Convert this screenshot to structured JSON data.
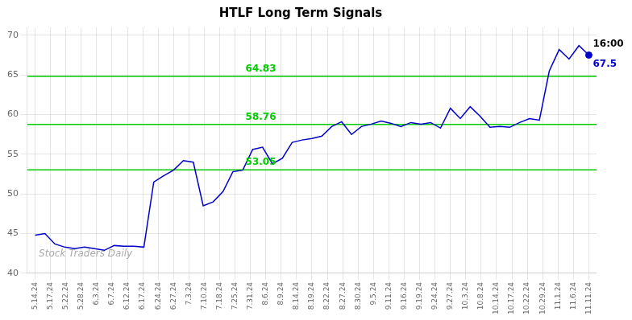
{
  "chart_data": {
    "type": "line",
    "title": "HTLF Long Term Signals",
    "watermark": "Stock Traders Daily",
    "color": "#0000cc",
    "grid": true,
    "x": [
      0,
      0.642857,
      1.285714,
      1.928571,
      2.571429,
      3.214286,
      3.857143,
      4.5,
      5.142857,
      5.785714,
      6.428571,
      7.071429,
      7.714286,
      8.357143,
      9,
      9.642857,
      10.285714,
      10.928571,
      11.571429,
      12.214286,
      12.857143,
      13.5,
      14.142857,
      14.785714,
      15.428571,
      16.071429,
      16.714286,
      17.357143,
      18,
      18.642857,
      19.285714,
      19.928571,
      20.571429,
      21.214286,
      21.857143,
      22.5,
      23.142857,
      23.785714,
      24.428571,
      25.071429,
      25.714286,
      26.357143,
      27,
      27.642857,
      28.285714,
      28.928571,
      29.571429,
      30.214286,
      30.857143,
      31.5,
      32.142857,
      32.785714,
      33.428571,
      34.071429,
      34.714286,
      35.357143,
      36
    ],
    "values": [
      44.8,
      45.0,
      43.7,
      43.3,
      43.1,
      43.3,
      43.1,
      42.9,
      43.5,
      43.4,
      43.4,
      43.3,
      51.5,
      52.3,
      53.0,
      54.2,
      54.0,
      48.5,
      49.0,
      50.3,
      52.8,
      53.0,
      55.6,
      55.9,
      53.8,
      54.5,
      56.5,
      56.8,
      57.0,
      57.3,
      58.5,
      59.1,
      57.5,
      58.5,
      58.8,
      59.2,
      58.9,
      58.5,
      59.0,
      58.8,
      59.0,
      58.3,
      60.8,
      59.5,
      61.0,
      59.8,
      58.4,
      58.5,
      58.4,
      59.0,
      59.5,
      59.3,
      65.5,
      68.2,
      67.0,
      68.7,
      67.5
    ],
    "xlim": [
      -0.5,
      36.5
    ],
    "xticks": [
      {
        "value": 0,
        "label": "5.14.24"
      },
      {
        "value": 1,
        "label": "5.17.24"
      },
      {
        "value": 2,
        "label": "5.22.24"
      },
      {
        "value": 3,
        "label": "5.28.24"
      },
      {
        "value": 4,
        "label": "6.3.24"
      },
      {
        "value": 5,
        "label": "6.7.24"
      },
      {
        "value": 6,
        "label": "6.12.24"
      },
      {
        "value": 7,
        "label": "6.17.24"
      },
      {
        "value": 8,
        "label": "6.24.24"
      },
      {
        "value": 9,
        "label": "6.27.24"
      },
      {
        "value": 10,
        "label": "7.3.24"
      },
      {
        "value": 11,
        "label": "7.10.24"
      },
      {
        "value": 12,
        "label": "7.18.24"
      },
      {
        "value": 13,
        "label": "7.25.24"
      },
      {
        "value": 14,
        "label": "7.31.24"
      },
      {
        "value": 15,
        "label": "8.6.24"
      },
      {
        "value": 16,
        "label": "8.9.24"
      },
      {
        "value": 17,
        "label": "8.14.24"
      },
      {
        "value": 18,
        "label": "8.19.24"
      },
      {
        "value": 19,
        "label": "8.22.24"
      },
      {
        "value": 20,
        "label": "8.27.24"
      },
      {
        "value": 21,
        "label": "8.30.24"
      },
      {
        "value": 22,
        "label": "9.5.24"
      },
      {
        "value": 23,
        "label": "9.11.24"
      },
      {
        "value": 24,
        "label": "9.16.24"
      },
      {
        "value": 25,
        "label": "9.19.24"
      },
      {
        "value": 26,
        "label": "9.24.24"
      },
      {
        "value": 27,
        "label": "9.27.24"
      },
      {
        "value": 28,
        "label": "10.3.24"
      },
      {
        "value": 29,
        "label": "10.8.24"
      },
      {
        "value": 30,
        "label": "10.14.24"
      },
      {
        "value": 31,
        "label": "10.17.24"
      },
      {
        "value": 32,
        "label": "10.22.24"
      },
      {
        "value": 33,
        "label": "10.29.24"
      },
      {
        "value": 34,
        "label": "11.1.24"
      },
      {
        "value": 35,
        "label": "11.6.24"
      },
      {
        "value": 36,
        "label": "11.11.24"
      }
    ],
    "ylim": [
      40,
      71
    ],
    "yticks": [
      40,
      45,
      50,
      55,
      60,
      65,
      70
    ],
    "hlines": [
      {
        "y": 53.05,
        "label": "53.05",
        "color": "#00cc00"
      },
      {
        "y": 58.76,
        "label": "58.76",
        "color": "#00cc00"
      },
      {
        "y": 64.83,
        "label": "64.83",
        "color": "#00cc00"
      }
    ],
    "last_point": {
      "x": 36,
      "y": 67.5,
      "color": "#0000cc",
      "time": "16:00",
      "label": "67.5"
    }
  }
}
